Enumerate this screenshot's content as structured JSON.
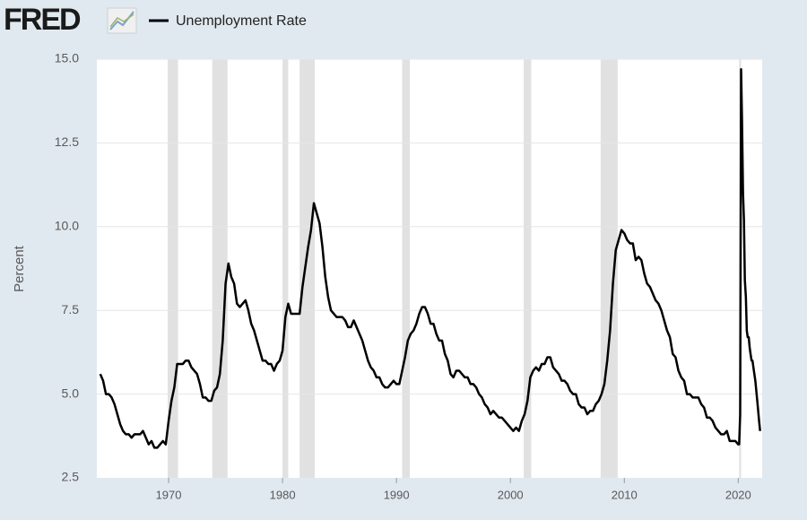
{
  "chart_data": {
    "type": "line",
    "logo": "FRED",
    "ylabel": "Percent",
    "xlim": [
      1963.7,
      2022.1
    ],
    "xticks": [
      1970,
      1980,
      1990,
      2000,
      2010,
      2020
    ],
    "ylim": [
      2.5,
      15
    ],
    "yticks": [
      2.5,
      {
        "value": 5,
        "label": "5.0"
      },
      7.5,
      {
        "value": 10,
        "label": "10.0"
      },
      12.5,
      {
        "value": 15,
        "label": "15.0"
      }
    ],
    "grid": true,
    "recessions": [
      [
        1969.92,
        1970.83
      ],
      [
        1973.83,
        1975.17
      ],
      [
        1980.0,
        1980.5
      ],
      [
        1981.5,
        1982.83
      ],
      [
        1990.5,
        1991.17
      ],
      [
        2001.17,
        2001.83
      ],
      [
        2007.92,
        2009.42
      ],
      [
        2020.08,
        2020.25
      ]
    ],
    "recession_color": "#e1e1e1",
    "x": [
      1964,
      1964.25,
      1964.5,
      1964.75,
      1965,
      1965.25,
      1965.5,
      1965.75,
      1966,
      1966.25,
      1966.5,
      1966.75,
      1967,
      1967.25,
      1967.5,
      1967.75,
      1968,
      1968.25,
      1968.5,
      1968.75,
      1969,
      1969.25,
      1969.5,
      1969.75,
      1970,
      1970.25,
      1970.5,
      1970.75,
      1971,
      1971.25,
      1971.5,
      1971.75,
      1972,
      1972.25,
      1972.5,
      1972.75,
      1973,
      1973.25,
      1973.5,
      1973.75,
      1974,
      1974.25,
      1974.5,
      1974.75,
      1975,
      1975.25,
      1975.5,
      1975.75,
      1976,
      1976.25,
      1976.5,
      1976.75,
      1977,
      1977.25,
      1977.5,
      1977.75,
      1978,
      1978.25,
      1978.5,
      1978.75,
      1979,
      1979.25,
      1979.5,
      1979.75,
      1980,
      1980.25,
      1980.5,
      1980.75,
      1981,
      1981.25,
      1981.5,
      1981.75,
      1982,
      1982.25,
      1982.5,
      1982.75,
      1983,
      1983.25,
      1983.5,
      1983.75,
      1984,
      1984.25,
      1984.5,
      1984.75,
      1985,
      1985.25,
      1985.5,
      1985.75,
      1986,
      1986.25,
      1986.5,
      1986.75,
      1987,
      1987.25,
      1987.5,
      1987.75,
      1988,
      1988.25,
      1988.5,
      1988.75,
      1989,
      1989.25,
      1989.5,
      1989.75,
      1990,
      1990.25,
      1990.5,
      1990.75,
      1991,
      1991.25,
      1991.5,
      1991.75,
      1992,
      1992.25,
      1992.5,
      1992.75,
      1993,
      1993.25,
      1993.5,
      1993.75,
      1994,
      1994.25,
      1994.5,
      1994.75,
      1995,
      1995.25,
      1995.5,
      1995.75,
      1996,
      1996.25,
      1996.5,
      1996.75,
      1997,
      1997.25,
      1997.5,
      1997.75,
      1998,
      1998.25,
      1998.5,
      1998.75,
      1999,
      1999.25,
      1999.5,
      1999.75,
      2000,
      2000.25,
      2000.5,
      2000.75,
      2001,
      2001.25,
      2001.5,
      2001.75,
      2002,
      2002.25,
      2002.5,
      2002.75,
      2003,
      2003.25,
      2003.5,
      2003.75,
      2004,
      2004.25,
      2004.5,
      2004.75,
      2005,
      2005.25,
      2005.5,
      2005.75,
      2006,
      2006.25,
      2006.5,
      2006.75,
      2007,
      2007.25,
      2007.5,
      2007.75,
      2008,
      2008.25,
      2008.5,
      2008.75,
      2009,
      2009.25,
      2009.5,
      2009.75,
      2010,
      2010.25,
      2010.5,
      2010.75,
      2011,
      2011.25,
      2011.5,
      2011.75,
      2012,
      2012.25,
      2012.5,
      2012.75,
      2013,
      2013.25,
      2013.5,
      2013.75,
      2014,
      2014.25,
      2014.5,
      2014.75,
      2015,
      2015.25,
      2015.5,
      2015.75,
      2016,
      2016.25,
      2016.5,
      2016.75,
      2017,
      2017.25,
      2017.5,
      2017.75,
      2018,
      2018.25,
      2018.5,
      2018.75,
      2019,
      2019.25,
      2019.5,
      2019.75,
      2020,
      2020.08,
      2020.17,
      2020.25,
      2020.33,
      2020.42,
      2020.5,
      2020.58,
      2020.67,
      2020.75,
      2020.83,
      2020.92,
      2021,
      2021.08,
      2021.17,
      2021.25,
      2021.33,
      2021.5,
      2021.67,
      2021.83,
      2021.92
    ],
    "series": [
      {
        "name": "Unemployment Rate",
        "color": "#000000",
        "values": [
          5.6,
          5.4,
          5.0,
          5.0,
          4.9,
          4.7,
          4.4,
          4.1,
          3.9,
          3.8,
          3.8,
          3.7,
          3.8,
          3.8,
          3.8,
          3.9,
          3.7,
          3.5,
          3.6,
          3.4,
          3.4,
          3.5,
          3.6,
          3.5,
          4.2,
          4.8,
          5.2,
          5.9,
          5.9,
          5.9,
          6.0,
          6.0,
          5.8,
          5.7,
          5.6,
          5.3,
          4.9,
          4.9,
          4.8,
          4.8,
          5.1,
          5.2,
          5.6,
          6.6,
          8.3,
          8.9,
          8.5,
          8.3,
          7.7,
          7.6,
          7.7,
          7.8,
          7.5,
          7.1,
          6.9,
          6.6,
          6.3,
          6.0,
          6.0,
          5.9,
          5.9,
          5.7,
          5.9,
          6.0,
          6.3,
          7.3,
          7.7,
          7.4,
          7.4,
          7.4,
          7.4,
          8.2,
          8.8,
          9.4,
          9.9,
          10.7,
          10.4,
          10.1,
          9.4,
          8.5,
          7.9,
          7.5,
          7.4,
          7.3,
          7.3,
          7.3,
          7.2,
          7.0,
          7.0,
          7.2,
          7.0,
          6.8,
          6.6,
          6.3,
          6.0,
          5.8,
          5.7,
          5.5,
          5.5,
          5.3,
          5.2,
          5.2,
          5.3,
          5.4,
          5.3,
          5.3,
          5.7,
          6.1,
          6.6,
          6.8,
          6.9,
          7.1,
          7.4,
          7.6,
          7.6,
          7.4,
          7.1,
          7.1,
          6.8,
          6.6,
          6.6,
          6.2,
          6.0,
          5.6,
          5.5,
          5.7,
          5.7,
          5.6,
          5.5,
          5.5,
          5.3,
          5.3,
          5.2,
          5.0,
          4.9,
          4.7,
          4.6,
          4.4,
          4.5,
          4.4,
          4.3,
          4.3,
          4.2,
          4.1,
          4.0,
          3.9,
          4.0,
          3.9,
          4.2,
          4.4,
          4.8,
          5.5,
          5.7,
          5.8,
          5.7,
          5.9,
          5.9,
          6.1,
          6.1,
          5.8,
          5.7,
          5.6,
          5.4,
          5.4,
          5.3,
          5.1,
          5.0,
          5.0,
          4.7,
          4.6,
          4.6,
          4.4,
          4.5,
          4.5,
          4.7,
          4.8,
          5.0,
          5.3,
          6.0,
          6.9,
          8.3,
          9.3,
          9.6,
          9.9,
          9.8,
          9.6,
          9.5,
          9.5,
          9.0,
          9.1,
          9.0,
          8.6,
          8.3,
          8.2,
          8.0,
          7.8,
          7.7,
          7.5,
          7.2,
          6.9,
          6.7,
          6.2,
          6.1,
          5.7,
          5.5,
          5.4,
          5.0,
          5.0,
          4.9,
          4.9,
          4.9,
          4.7,
          4.6,
          4.3,
          4.3,
          4.2,
          4.0,
          3.9,
          3.8,
          3.8,
          3.9,
          3.6,
          3.6,
          3.6,
          3.5,
          3.5,
          4.4,
          14.7,
          13.2,
          11.0,
          10.2,
          8.4,
          7.9,
          6.9,
          6.7,
          6.7,
          6.4,
          6.2,
          6.0,
          6.0,
          5.8,
          5.4,
          4.8,
          4.2,
          3.9
        ]
      }
    ]
  }
}
